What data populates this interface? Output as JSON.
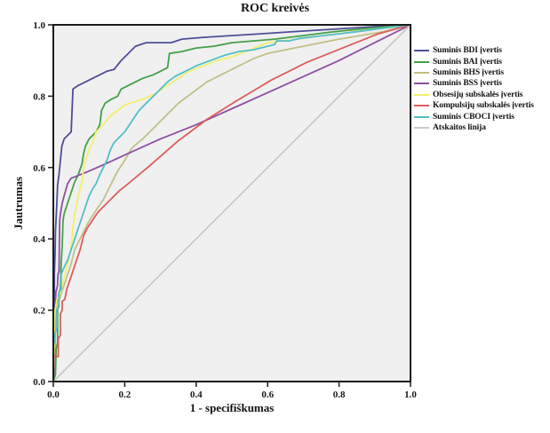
{
  "chart_data": {
    "type": "line",
    "title": "ROC kreivės",
    "xlabel": "1 - specifiškumas",
    "ylabel": "Jautrumas",
    "xlim": [
      0,
      1
    ],
    "ylim": [
      0,
      1
    ],
    "x_ticks": [
      "0.0",
      "0.2",
      "0.4",
      "0.6",
      "0.8",
      "1.0"
    ],
    "y_ticks": [
      "0.0",
      "0.2",
      "0.4",
      "0.6",
      "0.8",
      "1.0"
    ],
    "grid": false,
    "legend_position": "right",
    "plot_background": "#f0f0f0",
    "frame_color": "#1a1a1a",
    "series": [
      {
        "name": "Suminis BDI įvertis",
        "color": "#4e4e97",
        "points": [
          [
            0,
            0
          ],
          [
            0.003,
            0.02
          ],
          [
            0.003,
            0.3
          ],
          [
            0.005,
            0.36
          ],
          [
            0.006,
            0.42
          ],
          [
            0.008,
            0.46
          ],
          [
            0.01,
            0.5
          ],
          [
            0.012,
            0.55
          ],
          [
            0.016,
            0.58
          ],
          [
            0.02,
            0.62
          ],
          [
            0.024,
            0.66
          ],
          [
            0.03,
            0.68
          ],
          [
            0.04,
            0.69
          ],
          [
            0.05,
            0.7
          ],
          [
            0.055,
            0.82
          ],
          [
            0.07,
            0.83
          ],
          [
            0.09,
            0.84
          ],
          [
            0.11,
            0.85
          ],
          [
            0.13,
            0.86
          ],
          [
            0.15,
            0.87
          ],
          [
            0.17,
            0.875
          ],
          [
            0.19,
            0.9
          ],
          [
            0.21,
            0.92
          ],
          [
            0.23,
            0.94
          ],
          [
            0.26,
            0.95
          ],
          [
            0.33,
            0.95
          ],
          [
            0.36,
            0.96
          ],
          [
            0.42,
            0.965
          ],
          [
            0.5,
            0.97
          ],
          [
            0.58,
            0.975
          ],
          [
            0.66,
            0.98
          ],
          [
            0.74,
            0.985
          ],
          [
            0.82,
            0.99
          ],
          [
            0.9,
            0.995
          ],
          [
            1,
            1
          ]
        ]
      },
      {
        "name": "Suminis BAI įvertis",
        "color": "#43a047",
        "points": [
          [
            0,
            0
          ],
          [
            0.006,
            0.02
          ],
          [
            0.008,
            0.09
          ],
          [
            0.012,
            0.11
          ],
          [
            0.012,
            0.22
          ],
          [
            0.016,
            0.25
          ],
          [
            0.02,
            0.26
          ],
          [
            0.022,
            0.33
          ],
          [
            0.025,
            0.38
          ],
          [
            0.027,
            0.45
          ],
          [
            0.03,
            0.47
          ],
          [
            0.04,
            0.5
          ],
          [
            0.05,
            0.53
          ],
          [
            0.06,
            0.56
          ],
          [
            0.07,
            0.58
          ],
          [
            0.08,
            0.61
          ],
          [
            0.085,
            0.64
          ],
          [
            0.09,
            0.66
          ],
          [
            0.1,
            0.68
          ],
          [
            0.11,
            0.69
          ],
          [
            0.12,
            0.7
          ],
          [
            0.13,
            0.72
          ],
          [
            0.135,
            0.76
          ],
          [
            0.145,
            0.78
          ],
          [
            0.16,
            0.79
          ],
          [
            0.18,
            0.8
          ],
          [
            0.19,
            0.82
          ],
          [
            0.21,
            0.83
          ],
          [
            0.23,
            0.84
          ],
          [
            0.25,
            0.85
          ],
          [
            0.28,
            0.86
          ],
          [
            0.3,
            0.87
          ],
          [
            0.32,
            0.88
          ],
          [
            0.325,
            0.92
          ],
          [
            0.36,
            0.925
          ],
          [
            0.4,
            0.935
          ],
          [
            0.45,
            0.94
          ],
          [
            0.5,
            0.95
          ],
          [
            0.56,
            0.955
          ],
          [
            0.62,
            0.96
          ],
          [
            0.7,
            0.97
          ],
          [
            0.78,
            0.98
          ],
          [
            0.88,
            0.99
          ],
          [
            1,
            1
          ]
        ]
      },
      {
        "name": "Suminis BHS įvertis",
        "color": "#c2bf87",
        "points": [
          [
            0,
            0
          ],
          [
            0.005,
            0.18
          ],
          [
            0.01,
            0.21
          ],
          [
            0.02,
            0.24
          ],
          [
            0.03,
            0.27
          ],
          [
            0.04,
            0.3
          ],
          [
            0.05,
            0.33
          ],
          [
            0.06,
            0.37
          ],
          [
            0.08,
            0.41
          ],
          [
            0.1,
            0.45
          ],
          [
            0.12,
            0.48
          ],
          [
            0.14,
            0.51
          ],
          [
            0.16,
            0.55
          ],
          [
            0.18,
            0.59
          ],
          [
            0.2,
            0.62
          ],
          [
            0.22,
            0.655
          ],
          [
            0.25,
            0.68
          ],
          [
            0.28,
            0.71
          ],
          [
            0.31,
            0.74
          ],
          [
            0.35,
            0.78
          ],
          [
            0.39,
            0.81
          ],
          [
            0.43,
            0.84
          ],
          [
            0.47,
            0.86
          ],
          [
            0.51,
            0.88
          ],
          [
            0.56,
            0.905
          ],
          [
            0.6,
            0.92
          ],
          [
            0.65,
            0.93
          ],
          [
            0.7,
            0.94
          ],
          [
            0.75,
            0.95
          ],
          [
            0.8,
            0.96
          ],
          [
            0.86,
            0.97
          ],
          [
            0.92,
            0.98
          ],
          [
            1,
            1
          ]
        ]
      },
      {
        "name": "Suminis BSS įvertis",
        "color": "#8e4fa0",
        "points": [
          [
            0,
            0
          ],
          [
            0.003,
            0.05
          ],
          [
            0.005,
            0.15
          ],
          [
            0.007,
            0.25
          ],
          [
            0.012,
            0.27
          ],
          [
            0.013,
            0.3
          ],
          [
            0.016,
            0.31
          ],
          [
            0.018,
            0.45
          ],
          [
            0.02,
            0.47
          ],
          [
            0.025,
            0.5
          ],
          [
            0.03,
            0.52
          ],
          [
            0.04,
            0.555
          ],
          [
            0.05,
            0.57
          ],
          [
            0.1,
            0.59
          ],
          [
            0.15,
            0.612
          ],
          [
            0.2,
            0.635
          ],
          [
            0.3,
            0.68
          ],
          [
            0.4,
            0.72
          ],
          [
            0.5,
            0.765
          ],
          [
            0.6,
            0.81
          ],
          [
            0.7,
            0.855
          ],
          [
            0.8,
            0.9
          ],
          [
            0.9,
            0.95
          ],
          [
            1,
            1
          ]
        ]
      },
      {
        "name": "Obsesijų subskalės įvertis",
        "color": "#f2ef6e",
        "points": [
          [
            0,
            0
          ],
          [
            0.003,
            0.12
          ],
          [
            0.005,
            0.2
          ],
          [
            0.01,
            0.23
          ],
          [
            0.016,
            0.24
          ],
          [
            0.02,
            0.25
          ],
          [
            0.03,
            0.29
          ],
          [
            0.04,
            0.33
          ],
          [
            0.05,
            0.38
          ],
          [
            0.055,
            0.43
          ],
          [
            0.06,
            0.47
          ],
          [
            0.07,
            0.52
          ],
          [
            0.08,
            0.56
          ],
          [
            0.085,
            0.6
          ],
          [
            0.09,
            0.62
          ],
          [
            0.1,
            0.65
          ],
          [
            0.11,
            0.67
          ],
          [
            0.12,
            0.7
          ],
          [
            0.14,
            0.72
          ],
          [
            0.16,
            0.745
          ],
          [
            0.18,
            0.76
          ],
          [
            0.2,
            0.775
          ],
          [
            0.23,
            0.785
          ],
          [
            0.26,
            0.795
          ],
          [
            0.29,
            0.81
          ],
          [
            0.32,
            0.83
          ],
          [
            0.35,
            0.85
          ],
          [
            0.38,
            0.87
          ],
          [
            0.42,
            0.885
          ],
          [
            0.46,
            0.9
          ],
          [
            0.5,
            0.91
          ],
          [
            0.55,
            0.93
          ],
          [
            0.6,
            0.95
          ],
          [
            0.66,
            0.957
          ],
          [
            0.72,
            0.965
          ],
          [
            0.78,
            0.973
          ],
          [
            0.85,
            0.982
          ],
          [
            0.92,
            0.99
          ],
          [
            1,
            1
          ]
        ]
      },
      {
        "name": "Kompulsijų subskalės įvertis",
        "color": "#dc5d5d",
        "points": [
          [
            0,
            0
          ],
          [
            0,
            0.07
          ],
          [
            0.014,
            0.07
          ],
          [
            0.014,
            0.12
          ],
          [
            0.02,
            0.13
          ],
          [
            0.02,
            0.19
          ],
          [
            0.025,
            0.2
          ],
          [
            0.025,
            0.225
          ],
          [
            0.032,
            0.23
          ],
          [
            0.038,
            0.26
          ],
          [
            0.045,
            0.28
          ],
          [
            0.055,
            0.31
          ],
          [
            0.065,
            0.34
          ],
          [
            0.075,
            0.37
          ],
          [
            0.085,
            0.41
          ],
          [
            0.095,
            0.43
          ],
          [
            0.105,
            0.445
          ],
          [
            0.115,
            0.46
          ],
          [
            0.125,
            0.475
          ],
          [
            0.145,
            0.495
          ],
          [
            0.165,
            0.515
          ],
          [
            0.185,
            0.535
          ],
          [
            0.21,
            0.555
          ],
          [
            0.24,
            0.58
          ],
          [
            0.27,
            0.605
          ],
          [
            0.31,
            0.64
          ],
          [
            0.35,
            0.675
          ],
          [
            0.39,
            0.705
          ],
          [
            0.43,
            0.735
          ],
          [
            0.47,
            0.76
          ],
          [
            0.51,
            0.785
          ],
          [
            0.56,
            0.815
          ],
          [
            0.61,
            0.845
          ],
          [
            0.66,
            0.87
          ],
          [
            0.71,
            0.895
          ],
          [
            0.76,
            0.915
          ],
          [
            0.81,
            0.935
          ],
          [
            0.86,
            0.955
          ],
          [
            0.91,
            0.975
          ],
          [
            1,
            1
          ]
        ]
      },
      {
        "name": "Suminis CBOCI įvertis",
        "color": "#52bec8",
        "points": [
          [
            0,
            0
          ],
          [
            0,
            0.1
          ],
          [
            0.004,
            0.12
          ],
          [
            0.006,
            0.14
          ],
          [
            0.01,
            0.15
          ],
          [
            0.01,
            0.2
          ],
          [
            0.016,
            0.21
          ],
          [
            0.016,
            0.25
          ],
          [
            0.022,
            0.26
          ],
          [
            0.022,
            0.3
          ],
          [
            0.03,
            0.32
          ],
          [
            0.04,
            0.34
          ],
          [
            0.05,
            0.37
          ],
          [
            0.06,
            0.4
          ],
          [
            0.07,
            0.43
          ],
          [
            0.08,
            0.46
          ],
          [
            0.09,
            0.49
          ],
          [
            0.1,
            0.52
          ],
          [
            0.11,
            0.54
          ],
          [
            0.12,
            0.555
          ],
          [
            0.13,
            0.58
          ],
          [
            0.14,
            0.6
          ],
          [
            0.15,
            0.62
          ],
          [
            0.16,
            0.65
          ],
          [
            0.17,
            0.67
          ],
          [
            0.18,
            0.68
          ],
          [
            0.2,
            0.7
          ],
          [
            0.22,
            0.73
          ],
          [
            0.24,
            0.76
          ],
          [
            0.26,
            0.78
          ],
          [
            0.28,
            0.8
          ],
          [
            0.3,
            0.82
          ],
          [
            0.32,
            0.84
          ],
          [
            0.34,
            0.855
          ],
          [
            0.37,
            0.87
          ],
          [
            0.4,
            0.885
          ],
          [
            0.44,
            0.9
          ],
          [
            0.48,
            0.915
          ],
          [
            0.52,
            0.925
          ],
          [
            0.56,
            0.93
          ],
          [
            0.6,
            0.94
          ],
          [
            0.62,
            0.945
          ],
          [
            0.625,
            0.955
          ],
          [
            0.66,
            0.955
          ],
          [
            0.69,
            0.962
          ],
          [
            0.74,
            0.968
          ],
          [
            0.8,
            0.975
          ],
          [
            0.86,
            0.982
          ],
          [
            0.92,
            0.99
          ],
          [
            1,
            1
          ]
        ]
      },
      {
        "name": "Atskaitos linija",
        "color": "#c9c9c9",
        "points": [
          [
            0,
            0
          ],
          [
            1,
            1
          ]
        ]
      }
    ]
  }
}
